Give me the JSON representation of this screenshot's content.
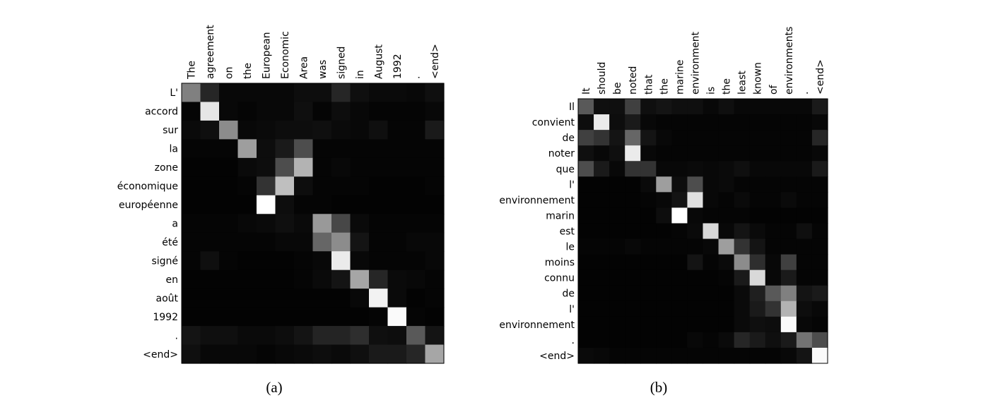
{
  "chart_data": [
    {
      "type": "heatmap",
      "caption": "(a)",
      "x_labels": [
        "The",
        "agreement",
        "on",
        "the",
        "European",
        "Economic",
        "Area",
        "was",
        "signed",
        "in",
        "August",
        "1992",
        ".",
        "<end>"
      ],
      "y_labels": [
        "L'",
        "accord",
        "sur",
        "la",
        "zone",
        "économique",
        "européenne",
        "a",
        "été",
        "signé",
        "en",
        "août",
        "1992",
        ".",
        "<end>"
      ],
      "colormap": "grayscale (black = 0, white = 1)",
      "value_range": [
        0,
        1
      ],
      "values": [
        [
          0.5,
          0.15,
          0.03,
          0.03,
          0.03,
          0.03,
          0.05,
          0.05,
          0.15,
          0.06,
          0.04,
          0.04,
          0.03,
          0.06
        ],
        [
          0.02,
          0.9,
          0.03,
          0.02,
          0.03,
          0.03,
          0.06,
          0.02,
          0.05,
          0.03,
          0.02,
          0.02,
          0.02,
          0.03
        ],
        [
          0.04,
          0.06,
          0.55,
          0.03,
          0.04,
          0.05,
          0.05,
          0.06,
          0.04,
          0.03,
          0.06,
          0.02,
          0.02,
          0.1
        ],
        [
          0.02,
          0.02,
          0.02,
          0.62,
          0.05,
          0.1,
          0.3,
          0.02,
          0.02,
          0.02,
          0.02,
          0.02,
          0.02,
          0.02
        ],
        [
          0.01,
          0.01,
          0.01,
          0.04,
          0.05,
          0.3,
          0.7,
          0.02,
          0.03,
          0.02,
          0.02,
          0.02,
          0.02,
          0.02
        ],
        [
          0.01,
          0.01,
          0.01,
          0.02,
          0.2,
          0.75,
          0.05,
          0.02,
          0.02,
          0.02,
          0.01,
          0.01,
          0.01,
          0.02
        ],
        [
          0.01,
          0.01,
          0.01,
          0.01,
          1.0,
          0.05,
          0.02,
          0.02,
          0.01,
          0.01,
          0.01,
          0.01,
          0.01,
          0.01
        ],
        [
          0.02,
          0.02,
          0.02,
          0.03,
          0.04,
          0.06,
          0.04,
          0.6,
          0.28,
          0.04,
          0.02,
          0.02,
          0.02,
          0.02
        ],
        [
          0.02,
          0.02,
          0.02,
          0.02,
          0.02,
          0.03,
          0.03,
          0.4,
          0.55,
          0.08,
          0.02,
          0.02,
          0.03,
          0.03
        ],
        [
          0.02,
          0.06,
          0.02,
          0.01,
          0.01,
          0.01,
          0.02,
          0.03,
          0.92,
          0.03,
          0.02,
          0.02,
          0.02,
          0.03
        ],
        [
          0.01,
          0.01,
          0.01,
          0.01,
          0.01,
          0.01,
          0.02,
          0.04,
          0.08,
          0.65,
          0.15,
          0.04,
          0.03,
          0.02
        ],
        [
          0.01,
          0.01,
          0.01,
          0.01,
          0.01,
          0.01,
          0.01,
          0.01,
          0.01,
          0.03,
          0.95,
          0.04,
          0.01,
          0.02
        ],
        [
          0.01,
          0.01,
          0.01,
          0.01,
          0.01,
          0.01,
          0.01,
          0.01,
          0.01,
          0.01,
          0.02,
          0.98,
          0.02,
          0.01
        ],
        [
          0.08,
          0.06,
          0.06,
          0.04,
          0.04,
          0.05,
          0.08,
          0.14,
          0.14,
          0.18,
          0.06,
          0.05,
          0.35,
          0.08
        ],
        [
          0.06,
          0.03,
          0.03,
          0.03,
          0.02,
          0.03,
          0.04,
          0.05,
          0.04,
          0.06,
          0.1,
          0.1,
          0.15,
          0.65
        ]
      ]
    },
    {
      "type": "heatmap",
      "caption": "(b)",
      "x_labels": [
        "It",
        "should",
        "be",
        "noted",
        "that",
        "the",
        "marine",
        "environment",
        "is",
        "the",
        "least",
        "known",
        "of",
        "environments",
        ".",
        "<end>"
      ],
      "y_labels": [
        "Il",
        "convient",
        "de",
        "noter",
        "que",
        "l'",
        "environnement",
        "marin",
        "est",
        "le",
        "moins",
        "connu",
        "de",
        "l'",
        "environnement",
        ".",
        "<end>"
      ],
      "colormap": "grayscale (black = 0, white = 1)",
      "value_range": [
        0,
        1
      ],
      "values": [
        [
          0.35,
          0.06,
          0.06,
          0.25,
          0.06,
          0.08,
          0.06,
          0.06,
          0.03,
          0.06,
          0.03,
          0.03,
          0.03,
          0.03,
          0.03,
          0.1
        ],
        [
          0.05,
          0.92,
          0.05,
          0.1,
          0.03,
          0.02,
          0.02,
          0.02,
          0.02,
          0.02,
          0.02,
          0.02,
          0.02,
          0.02,
          0.02,
          0.03
        ],
        [
          0.25,
          0.2,
          0.08,
          0.4,
          0.08,
          0.03,
          0.02,
          0.02,
          0.02,
          0.02,
          0.02,
          0.02,
          0.02,
          0.02,
          0.02,
          0.15
        ],
        [
          0.06,
          0.03,
          0.06,
          0.92,
          0.03,
          0.02,
          0.02,
          0.02,
          0.02,
          0.02,
          0.02,
          0.02,
          0.02,
          0.02,
          0.02,
          0.03
        ],
        [
          0.3,
          0.1,
          0.03,
          0.2,
          0.2,
          0.03,
          0.03,
          0.04,
          0.03,
          0.04,
          0.06,
          0.03,
          0.03,
          0.03,
          0.03,
          0.1
        ],
        [
          0.01,
          0.01,
          0.01,
          0.01,
          0.04,
          0.62,
          0.05,
          0.3,
          0.03,
          0.04,
          0.02,
          0.02,
          0.02,
          0.02,
          0.02,
          0.02
        ],
        [
          0.01,
          0.01,
          0.01,
          0.01,
          0.02,
          0.03,
          0.08,
          0.88,
          0.03,
          0.02,
          0.04,
          0.02,
          0.02,
          0.04,
          0.02,
          0.02
        ],
        [
          0.01,
          0.01,
          0.01,
          0.01,
          0.01,
          0.05,
          1.0,
          0.03,
          0.02,
          0.02,
          0.02,
          0.01,
          0.01,
          0.01,
          0.01,
          0.01
        ],
        [
          0.01,
          0.01,
          0.01,
          0.01,
          0.01,
          0.01,
          0.02,
          0.04,
          0.85,
          0.03,
          0.08,
          0.04,
          0.02,
          0.02,
          0.06,
          0.02
        ],
        [
          0.02,
          0.02,
          0.02,
          0.03,
          0.02,
          0.02,
          0.02,
          0.02,
          0.03,
          0.62,
          0.2,
          0.08,
          0.02,
          0.02,
          0.02,
          0.02
        ],
        [
          0.01,
          0.01,
          0.01,
          0.01,
          0.01,
          0.01,
          0.01,
          0.08,
          0.02,
          0.04,
          0.55,
          0.18,
          0.03,
          0.25,
          0.02,
          0.02
        ],
        [
          0.01,
          0.01,
          0.01,
          0.01,
          0.01,
          0.01,
          0.01,
          0.01,
          0.01,
          0.02,
          0.1,
          0.85,
          0.03,
          0.1,
          0.02,
          0.02
        ],
        [
          0.01,
          0.01,
          0.01,
          0.01,
          0.01,
          0.01,
          0.01,
          0.01,
          0.01,
          0.01,
          0.04,
          0.12,
          0.35,
          0.5,
          0.08,
          0.1
        ],
        [
          0.01,
          0.01,
          0.01,
          0.01,
          0.01,
          0.01,
          0.01,
          0.01,
          0.01,
          0.01,
          0.04,
          0.1,
          0.2,
          0.7,
          0.05,
          0.03
        ],
        [
          0.01,
          0.01,
          0.01,
          0.01,
          0.01,
          0.01,
          0.01,
          0.01,
          0.01,
          0.01,
          0.04,
          0.06,
          0.05,
          0.98,
          0.03,
          0.02
        ],
        [
          0.01,
          0.01,
          0.01,
          0.01,
          0.01,
          0.01,
          0.01,
          0.03,
          0.02,
          0.04,
          0.15,
          0.1,
          0.06,
          0.1,
          0.45,
          0.3
        ],
        [
          0.04,
          0.03,
          0.02,
          0.02,
          0.02,
          0.02,
          0.02,
          0.02,
          0.02,
          0.02,
          0.02,
          0.02,
          0.02,
          0.03,
          0.08,
          0.98
        ]
      ]
    }
  ]
}
